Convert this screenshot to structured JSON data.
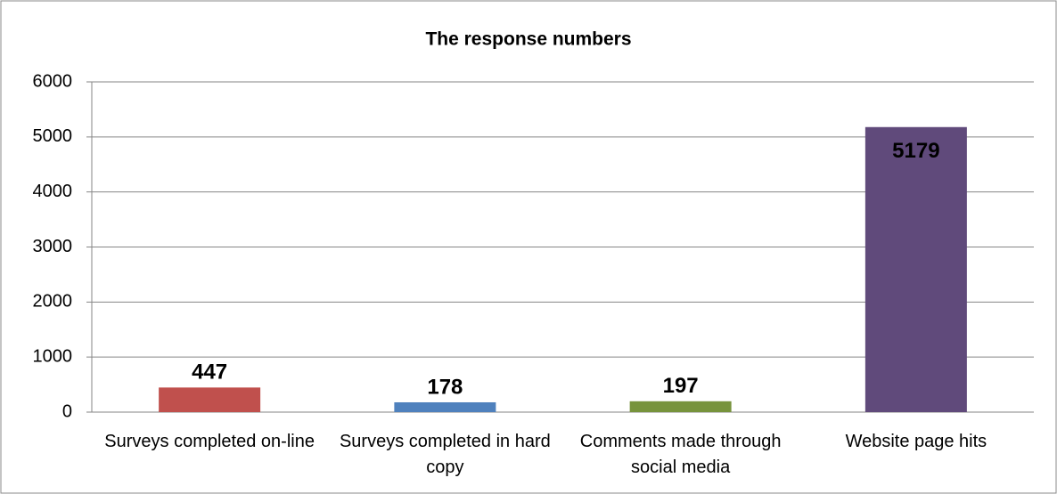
{
  "chart_data": {
    "type": "bar",
    "title": "The response numbers",
    "categories": [
      "Surveys completed on-line",
      "Surveys completed in hard copy",
      "Comments made through social media",
      "Website page hits"
    ],
    "values": [
      447,
      178,
      197,
      5179
    ],
    "colors": [
      "#c0504d",
      "#4f81bd",
      "#77933c",
      "#604a7b"
    ],
    "ylim": [
      0,
      6000
    ],
    "yticks": [
      0,
      1000,
      2000,
      3000,
      4000,
      5000,
      6000
    ],
    "grid": true
  }
}
